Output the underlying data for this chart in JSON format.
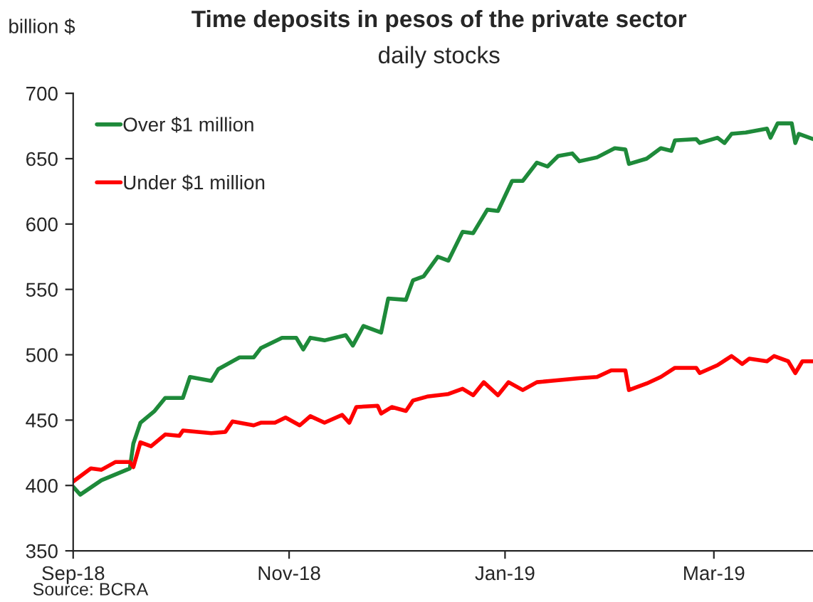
{
  "chart_data": {
    "type": "line",
    "title": "Time deposits in pesos of the private sector",
    "subtitle": "daily stocks",
    "ylabel": "billion $",
    "annotations": [
      "Source: BCRA"
    ],
    "xlim": [
      "2018-09-01",
      "2019-03-29"
    ],
    "xticks": [
      {
        "value": "2018-09-01",
        "label": "Sep-18"
      },
      {
        "value": "2018-11-01",
        "label": "Nov-18"
      },
      {
        "value": "2019-01-01",
        "label": "Jan-19"
      },
      {
        "value": "2019-03-01",
        "label": "Mar-19"
      }
    ],
    "ylim": [
      350,
      700
    ],
    "yticks": [
      350,
      400,
      450,
      500,
      550,
      600,
      650,
      700
    ],
    "grid": false,
    "legend": "top left",
    "line_style": "solid",
    "marker": "none",
    "series": [
      {
        "name": "Over $1 million",
        "color": "#1e8a3a",
        "x": [
          "2018-09-01",
          "2018-09-03",
          "2018-09-09",
          "2018-09-17",
          "2018-09-18",
          "2018-09-20",
          "2018-09-24",
          "2018-09-27",
          "2018-10-02",
          "2018-10-04",
          "2018-10-10",
          "2018-10-12",
          "2018-10-18",
          "2018-10-22",
          "2018-10-24",
          "2018-10-30",
          "2018-11-03",
          "2018-11-05",
          "2018-11-07",
          "2018-11-11",
          "2018-11-17",
          "2018-11-19",
          "2018-11-22",
          "2018-11-27",
          "2018-11-29",
          "2018-12-04",
          "2018-12-06",
          "2018-12-09",
          "2018-12-13",
          "2018-12-16",
          "2018-12-20",
          "2018-12-23",
          "2018-12-27",
          "2018-12-30",
          "2019-01-03",
          "2019-01-06",
          "2019-01-10",
          "2019-01-13",
          "2019-01-16",
          "2019-01-20",
          "2019-01-22",
          "2019-01-27",
          "2019-02-01",
          "2019-02-04",
          "2019-02-05",
          "2019-02-10",
          "2019-02-14",
          "2019-02-17",
          "2019-02-18",
          "2019-02-24",
          "2019-02-25",
          "2019-03-02",
          "2019-03-04",
          "2019-03-06",
          "2019-03-10",
          "2019-03-16",
          "2019-03-17",
          "2019-03-19",
          "2019-03-23",
          "2019-03-24",
          "2019-03-25",
          "2019-03-29"
        ],
        "values": [
          399,
          393,
          404,
          413,
          432,
          448,
          457,
          467,
          467,
          483,
          480,
          489,
          498,
          498,
          505,
          513,
          513,
          504,
          513,
          511,
          515,
          507,
          522,
          517,
          543,
          542,
          557,
          560,
          575,
          572,
          594,
          593,
          611,
          610,
          633,
          633,
          647,
          644,
          652,
          654,
          648,
          651,
          658,
          657,
          646,
          650,
          658,
          656,
          664,
          665,
          662,
          666,
          662,
          669,
          670,
          673,
          666,
          677,
          677,
          662,
          669,
          665
        ]
      },
      {
        "name": "Under $1 million",
        "color": "#ff0000",
        "x": [
          "2018-09-01",
          "2018-09-06",
          "2018-09-09",
          "2018-09-13",
          "2018-09-17",
          "2018-09-18",
          "2018-09-20",
          "2018-09-23",
          "2018-09-27",
          "2018-10-01",
          "2018-10-02",
          "2018-10-10",
          "2018-10-14",
          "2018-10-16",
          "2018-10-22",
          "2018-10-24",
          "2018-10-28",
          "2018-10-31",
          "2018-11-04",
          "2018-11-07",
          "2018-11-11",
          "2018-11-16",
          "2018-11-18",
          "2018-11-20",
          "2018-11-26",
          "2018-11-27",
          "2018-11-30",
          "2018-12-04",
          "2018-12-06",
          "2018-12-10",
          "2018-12-16",
          "2018-12-20",
          "2018-12-23",
          "2018-12-26",
          "2018-12-30",
          "2019-01-02",
          "2019-01-06",
          "2019-01-10",
          "2019-01-14",
          "2019-01-22",
          "2019-01-27",
          "2019-01-31",
          "2019-02-04",
          "2019-02-05",
          "2019-02-10",
          "2019-02-14",
          "2019-02-18",
          "2019-02-24",
          "2019-02-25",
          "2019-03-02",
          "2019-03-06",
          "2019-03-09",
          "2019-03-11",
          "2019-03-16",
          "2019-03-18",
          "2019-03-22",
          "2019-03-24",
          "2019-03-26",
          "2019-03-29"
        ],
        "values": [
          403,
          413,
          412,
          418,
          418,
          414,
          433,
          430,
          439,
          438,
          442,
          440,
          441,
          449,
          446,
          448,
          448,
          452,
          446,
          453,
          448,
          454,
          448,
          460,
          461,
          455,
          460,
          457,
          465,
          468,
          470,
          474,
          469,
          479,
          469,
          479,
          473,
          479,
          480,
          482,
          483,
          488,
          488,
          473,
          478,
          483,
          490,
          490,
          486,
          492,
          499,
          493,
          497,
          495,
          499,
          495,
          486,
          495,
          495
        ]
      }
    ]
  }
}
